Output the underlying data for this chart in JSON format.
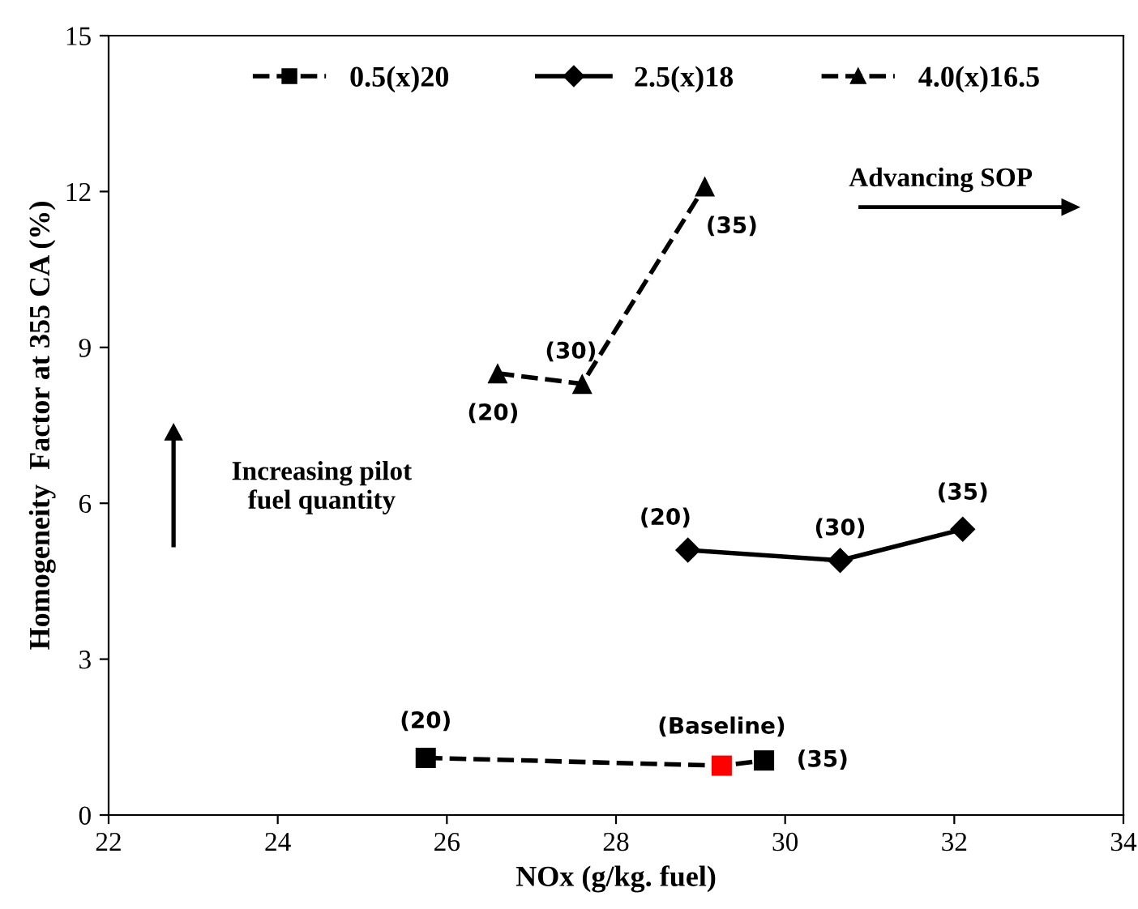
{
  "chart_data": {
    "type": "line",
    "xlabel": "NOx (g/kg. fuel)",
    "ylabel": "Homogeneity  Factor at 355 CA (%)",
    "xlim": [
      22,
      34
    ],
    "xticks": [
      22,
      24,
      26,
      28,
      30,
      32,
      34
    ],
    "ylim": [
      0,
      15
    ],
    "yticks": [
      0,
      3,
      6,
      9,
      12,
      15
    ],
    "grid": false,
    "legend": "top",
    "series": [
      {
        "name": "0.5(x)20",
        "color": "#000000",
        "colors": [
          "#000000",
          "#ff0000",
          "#000000"
        ],
        "marker": "square",
        "line_style": "dashed",
        "x": [
          25.75,
          29.25,
          29.75
        ],
        "values": [
          1.1,
          0.95,
          1.05
        ]
      },
      {
        "name": "2.5(x)18",
        "color": "#000000",
        "marker": "diamond",
        "line_style": "solid",
        "x": [
          28.85,
          30.65,
          32.1
        ],
        "values": [
          5.1,
          4.9,
          5.5
        ]
      },
      {
        "name": "4.0(x)16.5",
        "color": "#000000",
        "marker": "triangle",
        "line_style": "dashed",
        "x": [
          26.6,
          27.6,
          29.05
        ],
        "values": [
          8.5,
          8.3,
          12.1
        ]
      }
    ],
    "annotations": [
      {
        "text": "(20)",
        "x": 25.75,
        "y": 1.1
      },
      {
        "text": "(Baseline)",
        "x": 29.25,
        "y": 0.95
      },
      {
        "text": "(35)",
        "x": 29.75,
        "y": 1.05
      },
      {
        "text": "(20)",
        "x": 28.85,
        "y": 5.1
      },
      {
        "text": "(30)",
        "x": 30.65,
        "y": 4.9
      },
      {
        "text": "(35)",
        "x": 32.1,
        "y": 5.5
      },
      {
        "text": "(20)",
        "x": 26.6,
        "y": 8.5
      },
      {
        "text": "(30)",
        "x": 27.6,
        "y": 8.3
      },
      {
        "text": "(35)",
        "x": 29.05,
        "y": 12.1
      },
      "Advancing SOP",
      "Increasing pilot\nfuel quantity"
    ]
  }
}
